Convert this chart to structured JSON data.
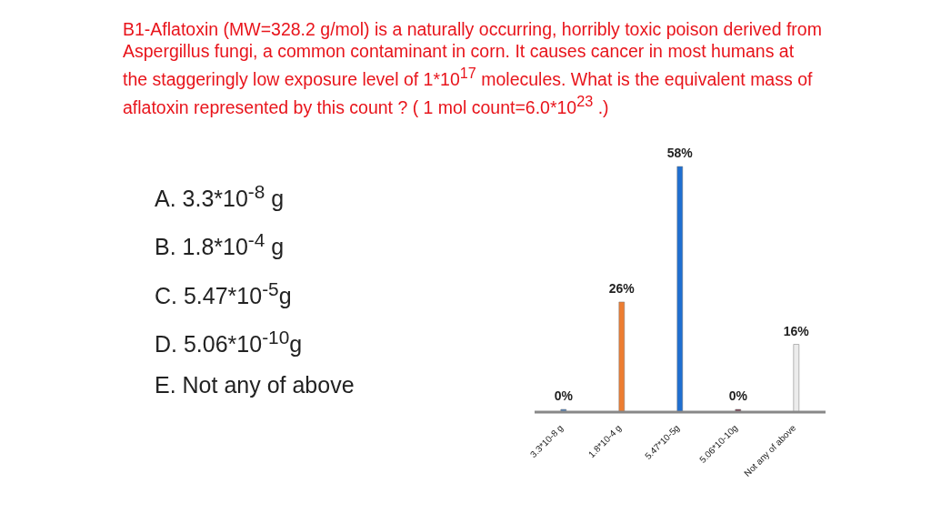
{
  "chart_data": {
    "type": "bar",
    "title": "B1-Aflatoxin (MW=328.2 g/mol) is a naturally occurring, horribly toxic poison derived from Aspergillus fungi, a common contaminant in corn. It causes cancer in most humans at the staggeringly low exposure level of 1*10$^{17}$ molecules.  What is the equivalent mass of aflatoxin represented by this count ? ( 1 mol count=6.0*10$^{23}$ .)",
    "annotations": [
      "A.  3.3*10$^{-8}$ g",
      "B.  1.8*10$^{-4}$ g",
      "C.  5.47*10$^{-5}$g",
      "D.  5.06*10$^{-10}$g",
      "E.  Not any of above"
    ],
    "categories": [
      "3.3*10-8 g",
      "1.8*10-4 g",
      "5.47*10-5g",
      "5.06*10-10g",
      "Not any of above"
    ],
    "values": [
      0,
      26,
      58,
      0,
      16
    ],
    "colors": [
      "#4f81bd",
      "#ed7d31",
      "#1f6fd1",
      "#7b3b4e",
      "#ececec"
    ],
    "value_labels": [
      "0%",
      "26%",
      "58%",
      "0%",
      "16%"
    ]
  }
}
